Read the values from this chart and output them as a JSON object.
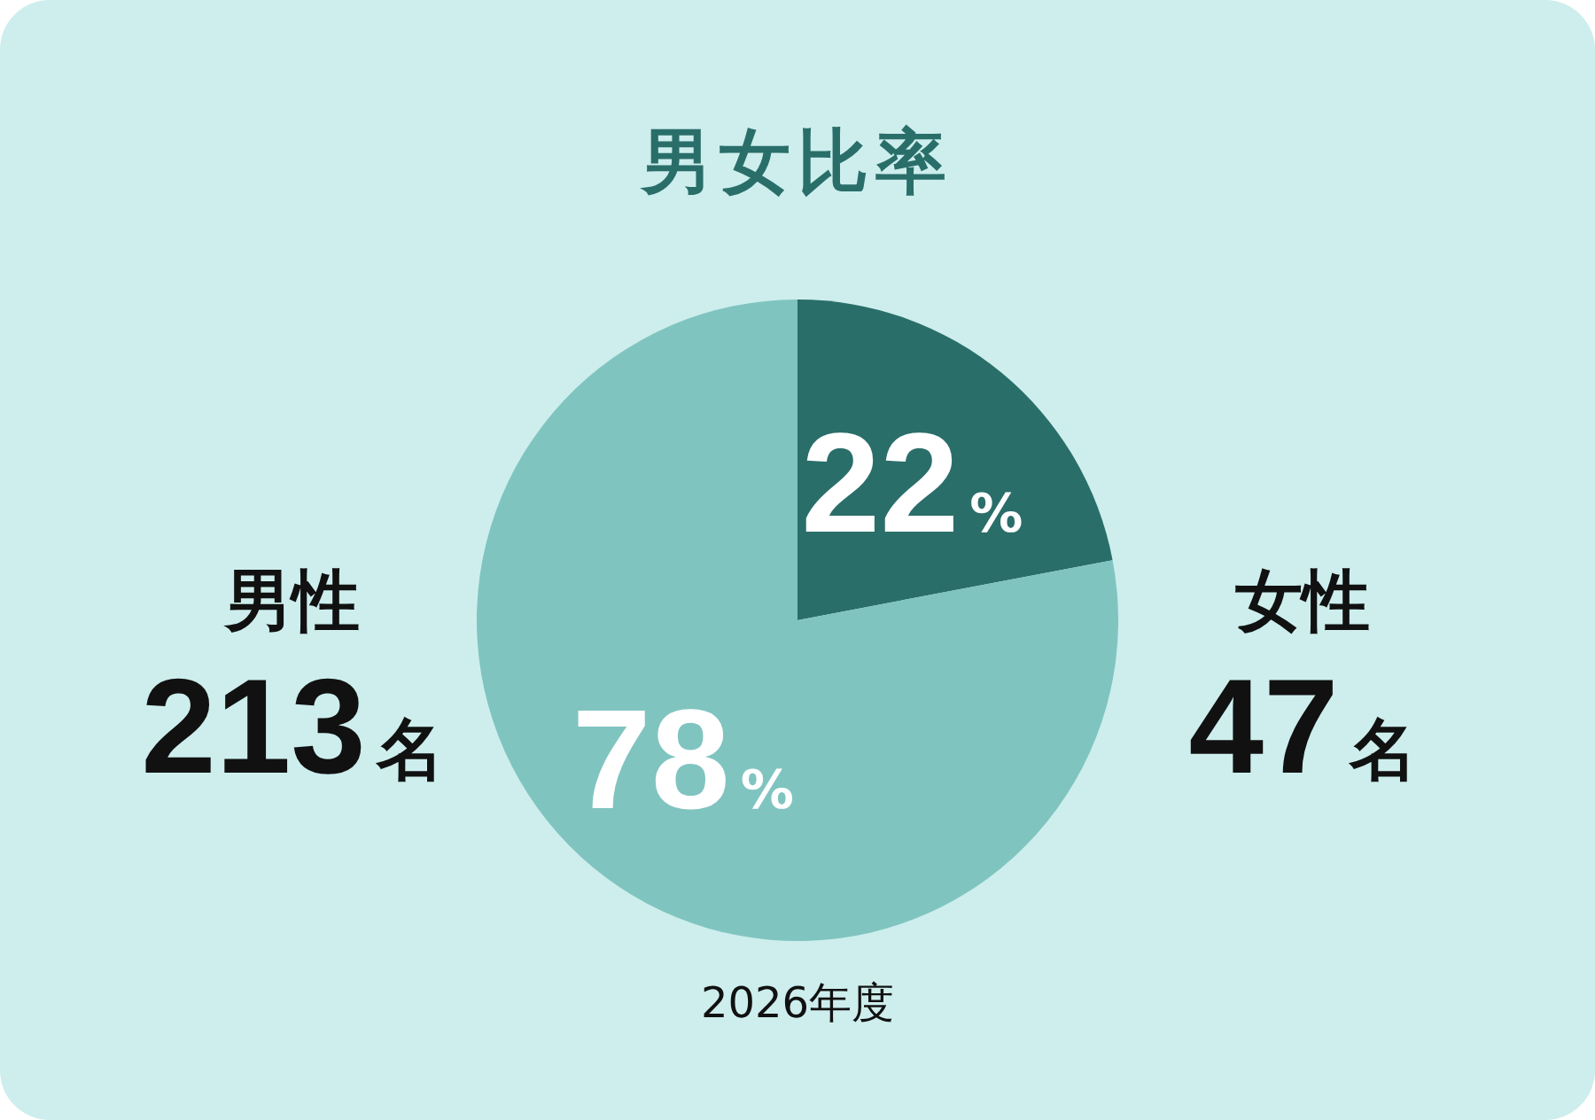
{
  "chart_data": {
    "type": "pie",
    "title": "男女比率",
    "categories": [
      "女性",
      "男性"
    ],
    "values": [
      22,
      78
    ],
    "colors": [
      "#2a6e6a",
      "#80c4c0"
    ],
    "value_labels": [
      "22%",
      "78%"
    ],
    "annotations": [
      "47名",
      "213名",
      "2026年度"
    ]
  }
}
